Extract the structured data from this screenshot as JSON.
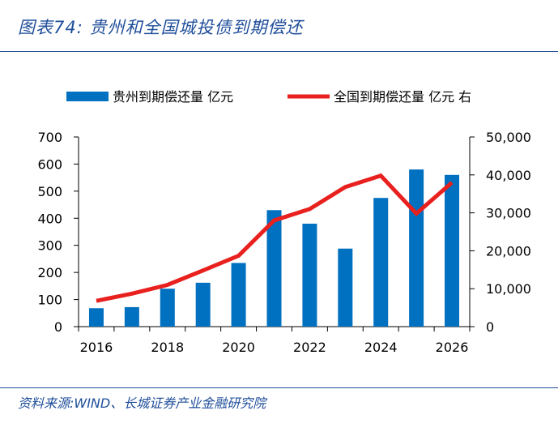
{
  "figure": {
    "title": "图表74:  贵州和全国城投债到期偿还",
    "source": "资料来源:WIND、长城证券产业金融研究院"
  },
  "colors": {
    "bar": "#0070c0",
    "line": "#e8201e",
    "accent": "#1f4e9a"
  },
  "chart_data": {
    "type": "bar",
    "title": "",
    "x": [
      2016,
      2017,
      2018,
      2019,
      2020,
      2021,
      2022,
      2023,
      2024,
      2025,
      2026
    ],
    "xticks": [
      "2016",
      "2018",
      "2020",
      "2022",
      "2024",
      "2026"
    ],
    "xlabel": "",
    "ylabel": "",
    "ylim": [
      0,
      700
    ],
    "yticks": [
      "0",
      "100",
      "200",
      "300",
      "400",
      "500",
      "600",
      "700"
    ],
    "y2lim": [
      0,
      50000
    ],
    "y2ticks": [
      "0",
      "10,000",
      "20,000",
      "30,000",
      "40,000",
      "50,000"
    ],
    "series": [
      {
        "name": "贵州到期偿还量 亿元",
        "type": "bar",
        "axis": "left",
        "values": [
          68,
          72,
          140,
          162,
          235,
          430,
          380,
          288,
          475,
          580,
          560
        ]
      },
      {
        "name": "全国到期偿还量 亿元 右",
        "type": "line",
        "axis": "right",
        "values": [
          6800,
          8700,
          11000,
          14800,
          18700,
          28000,
          31000,
          36800,
          39800,
          29800,
          38000
        ]
      }
    ],
    "legend": "top"
  }
}
